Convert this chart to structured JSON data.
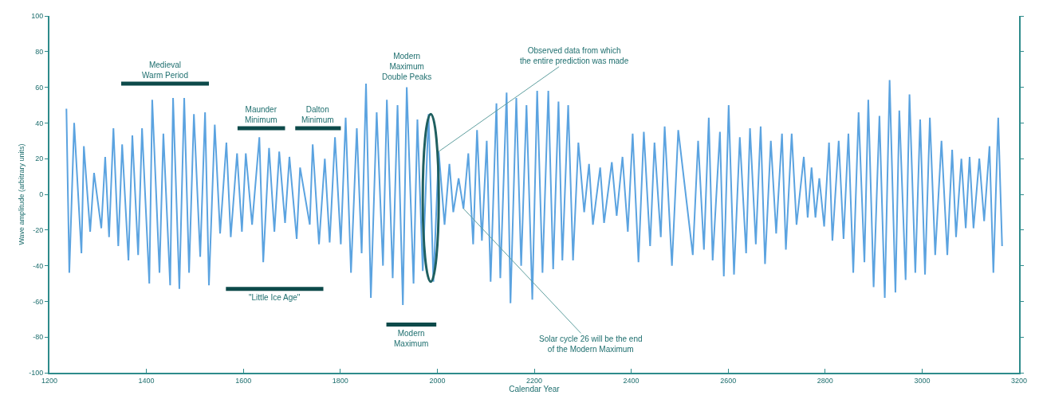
{
  "chart_data": {
    "type": "line",
    "xlabel": "Calendar Year",
    "ylabel": "Wave amplitude (arbitrary units)",
    "xlim": [
      1200,
      3200
    ],
    "xticks": [
      1200,
      1400,
      1600,
      1800,
      2000,
      2200,
      2400,
      2600,
      2800,
      3000,
      3200
    ],
    "ylim": [
      -100,
      100
    ],
    "yticks": [
      -100,
      -80,
      -60,
      -40,
      -20,
      0,
      20,
      40,
      60,
      80,
      100
    ],
    "grid": false,
    "line_style": "solid",
    "series": [
      {
        "color": "#5ba3e0",
        "x": [
          1235,
          1241,
          1251,
          1266,
          1271,
          1284,
          1292,
          1307,
          1315,
          1323,
          1332,
          1342,
          1350,
          1363,
          1371,
          1383,
          1391,
          1406,
          1412,
          1427,
          1435,
          1449,
          1455,
          1468,
          1478,
          1488,
          1498,
          1511,
          1521,
          1529,
          1541,
          1552,
          1565,
          1574,
          1587,
          1597,
          1605,
          1618,
          1633,
          1641,
          1653,
          1664,
          1674,
          1686,
          1695,
          1710,
          1717,
          1737,
          1743,
          1756,
          1768,
          1778,
          1789,
          1801,
          1811,
          1822,
          1834,
          1844,
          1853,
          1863,
          1875,
          1888,
          1896,
          1908,
          1918,
          1929,
          1937,
          1951,
          1959,
          1970,
          1982,
          1992,
          2003,
          2015,
          2025,
          2033,
          2044,
          2054,
          2064,
          2074,
          2082,
          2092,
          2102,
          2110,
          2122,
          2130,
          2143,
          2151,
          2163,
          2173,
          2184,
          2196,
          2206,
          2217,
          2229,
          2239,
          2250,
          2258,
          2270,
          2280,
          2291,
          2303,
          2313,
          2321,
          2336,
          2344,
          2360,
          2370,
          2382,
          2393,
          2403,
          2415,
          2426,
          2439,
          2448,
          2461,
          2469,
          2484,
          2497,
          2527,
          2538,
          2550,
          2560,
          2568,
          2583,
          2591,
          2601,
          2612,
          2624,
          2637,
          2645,
          2657,
          2667,
          2676,
          2688,
          2699,
          2711,
          2719,
          2731,
          2741,
          2756,
          2764,
          2772,
          2780,
          2788,
          2798,
          2808,
          2815,
          2828,
          2838,
          2848,
          2858,
          2869,
          2881,
          2889,
          2900,
          2912,
          2923,
          2933,
          2945,
          2953,
          2966,
          2974,
          2986,
          2996,
          3006,
          3016,
          3027,
          3040,
          3052,
          3062,
          3070,
          3081,
          3090,
          3098,
          3106,
          3118,
          3128,
          3139,
          3147,
          3157,
          3165
        ],
        "values": [
          48,
          -44,
          40,
          -33,
          27,
          -21,
          12,
          -19,
          21,
          -24,
          37,
          -29,
          28,
          -37,
          33,
          -34,
          37,
          -50,
          53,
          -44,
          34,
          -51,
          54,
          -53,
          54,
          -44,
          45,
          -35,
          46,
          -51,
          39,
          -22,
          29,
          -24,
          23,
          -21,
          23,
          -17,
          32,
          -38,
          26,
          -21,
          24,
          -16,
          21,
          -25,
          15,
          -17,
          28,
          -28,
          20,
          -27,
          32,
          -28,
          43,
          -44,
          37,
          -33,
          62,
          -58,
          46,
          -40,
          53,
          -47,
          50,
          -62,
          60,
          -50,
          42,
          -43,
          45,
          -49,
          24,
          -17,
          17,
          -10,
          9,
          -8,
          23,
          -28,
          36,
          -26,
          30,
          -49,
          51,
          -47,
          57,
          -61,
          54,
          -40,
          50,
          -59,
          58,
          -44,
          58,
          -42,
          52,
          -37,
          50,
          -37,
          29,
          -10,
          17,
          -17,
          15,
          -16,
          18,
          -12,
          21,
          -21,
          34,
          -38,
          35,
          -29,
          29,
          -24,
          38,
          -40,
          36,
          -34,
          30,
          -31,
          43,
          -37,
          35,
          -46,
          50,
          -45,
          32,
          -33,
          37,
          -28,
          38,
          -39,
          30,
          -22,
          34,
          -31,
          34,
          -17,
          21,
          -13,
          15,
          -13,
          9,
          -18,
          29,
          -26,
          30,
          -25,
          34,
          -44,
          46,
          -38,
          53,
          -52,
          44,
          -58,
          64,
          -55,
          47,
          -48,
          56,
          -44,
          42,
          -45,
          43,
          -34,
          30,
          -34,
          25,
          -24,
          20,
          -19,
          21,
          -19,
          20,
          -15,
          27,
          -44,
          43,
          -29
        ]
      },
      {
        "color": "#0d4a4a",
        "x": [
          1348,
          1529
        ],
        "values": [
          62,
          62
        ]
      },
      {
        "color": "#0d4a4a",
        "x": [
          1588,
          1686
        ],
        "values": [
          37,
          37
        ]
      },
      {
        "color": "#0d4a4a",
        "x": [
          1707,
          1801
        ],
        "values": [
          37,
          37
        ]
      },
      {
        "color": "#0d4a4a",
        "x": [
          1564,
          1765
        ],
        "values": [
          -53,
          -53
        ]
      },
      {
        "color": "#0d4a4a",
        "x": [
          1895,
          1998
        ],
        "values": [
          -73,
          -73
        ]
      }
    ],
    "annotations": [
      {
        "text": "Medieval\nWarm Period",
        "x": 1438,
        "y": 62
      },
      {
        "text": "Maunder\nMinimum",
        "x": 1637,
        "y": 37
      },
      {
        "text": "Dalton\nMinimum",
        "x": 1754,
        "y": 37
      },
      {
        "text": "\"Little Ice Age\"",
        "x": 1664,
        "y": -53
      },
      {
        "text": "Modern\nMaximum\nDouble Peaks",
        "x": 1937,
        "y": 60
      },
      {
        "text": "Modern\nMaximum",
        "x": 1946,
        "y": -73
      },
      {
        "text": "Observed data from which\nthe entire prediction was made",
        "x": 2003,
        "y": 24
      },
      {
        "text": "Solar cycle 26 will be the end\nof the Modern Maximum",
        "x": 2054,
        "y": -8
      }
    ]
  }
}
